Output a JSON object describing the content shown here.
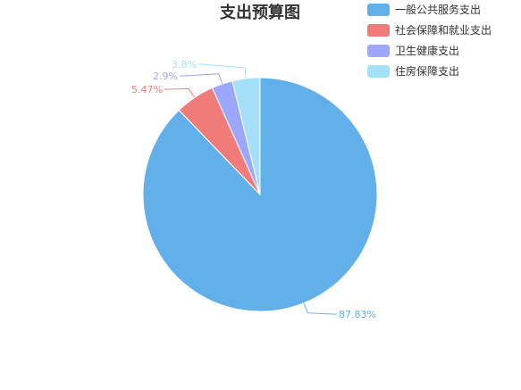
{
  "chart_data": {
    "type": "pie",
    "title": "支出预算图",
    "legend_position": "top-right",
    "categories": [
      "一般公共服务支出",
      "社会保障和就业支出",
      "卫生健康支出",
      "住房保障支出"
    ],
    "values": [
      87.83,
      5.47,
      2.9,
      3.8
    ],
    "value_labels": [
      "87.83%",
      "5.47%",
      "2.9%",
      "3.8%"
    ],
    "colors": [
      "#62b0ea",
      "#f07c7a",
      "#9da7fb",
      "#a5e0fb"
    ],
    "start_angle_deg": 90,
    "direction": "clockwise"
  }
}
